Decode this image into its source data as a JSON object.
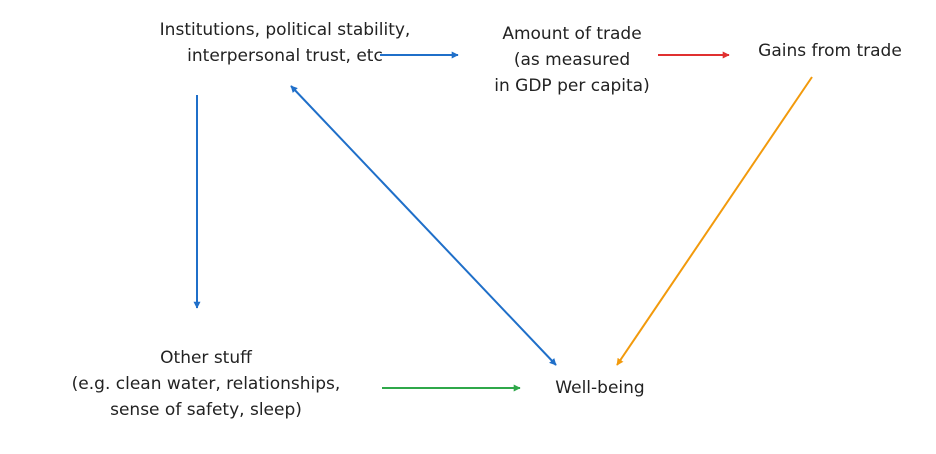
{
  "nodes": {
    "institutions": {
      "lines": [
        "Institutions, political stability,",
        "interpersonal trust, etc"
      ]
    },
    "trade": {
      "lines": [
        "Amount of trade",
        "(as measured",
        "in GDP per capita)"
      ]
    },
    "gains": {
      "lines": [
        "Gains from trade"
      ]
    },
    "other": {
      "lines": [
        "Other stuff",
        "(e.g. clean water, relationships,",
        "sense of safety, sleep)"
      ]
    },
    "wellbeing": {
      "lines": [
        "Well-being"
      ]
    }
  },
  "colors": {
    "blue": "#1f6fc9",
    "red": "#e03030",
    "orange": "#f29a0c",
    "green": "#2fa84a"
  },
  "edges": [
    {
      "from": "institutions",
      "to": "trade",
      "color": "blue",
      "direction": "forward"
    },
    {
      "from": "trade",
      "to": "gains",
      "color": "red",
      "direction": "forward"
    },
    {
      "from": "gains",
      "to": "wellbeing",
      "color": "orange",
      "direction": "forward"
    },
    {
      "from": "institutions",
      "to": "other",
      "color": "blue",
      "direction": "forward"
    },
    {
      "from": "institutions",
      "to": "wellbeing",
      "color": "blue",
      "direction": "both"
    },
    {
      "from": "other",
      "to": "wellbeing",
      "color": "green",
      "direction": "forward"
    }
  ]
}
